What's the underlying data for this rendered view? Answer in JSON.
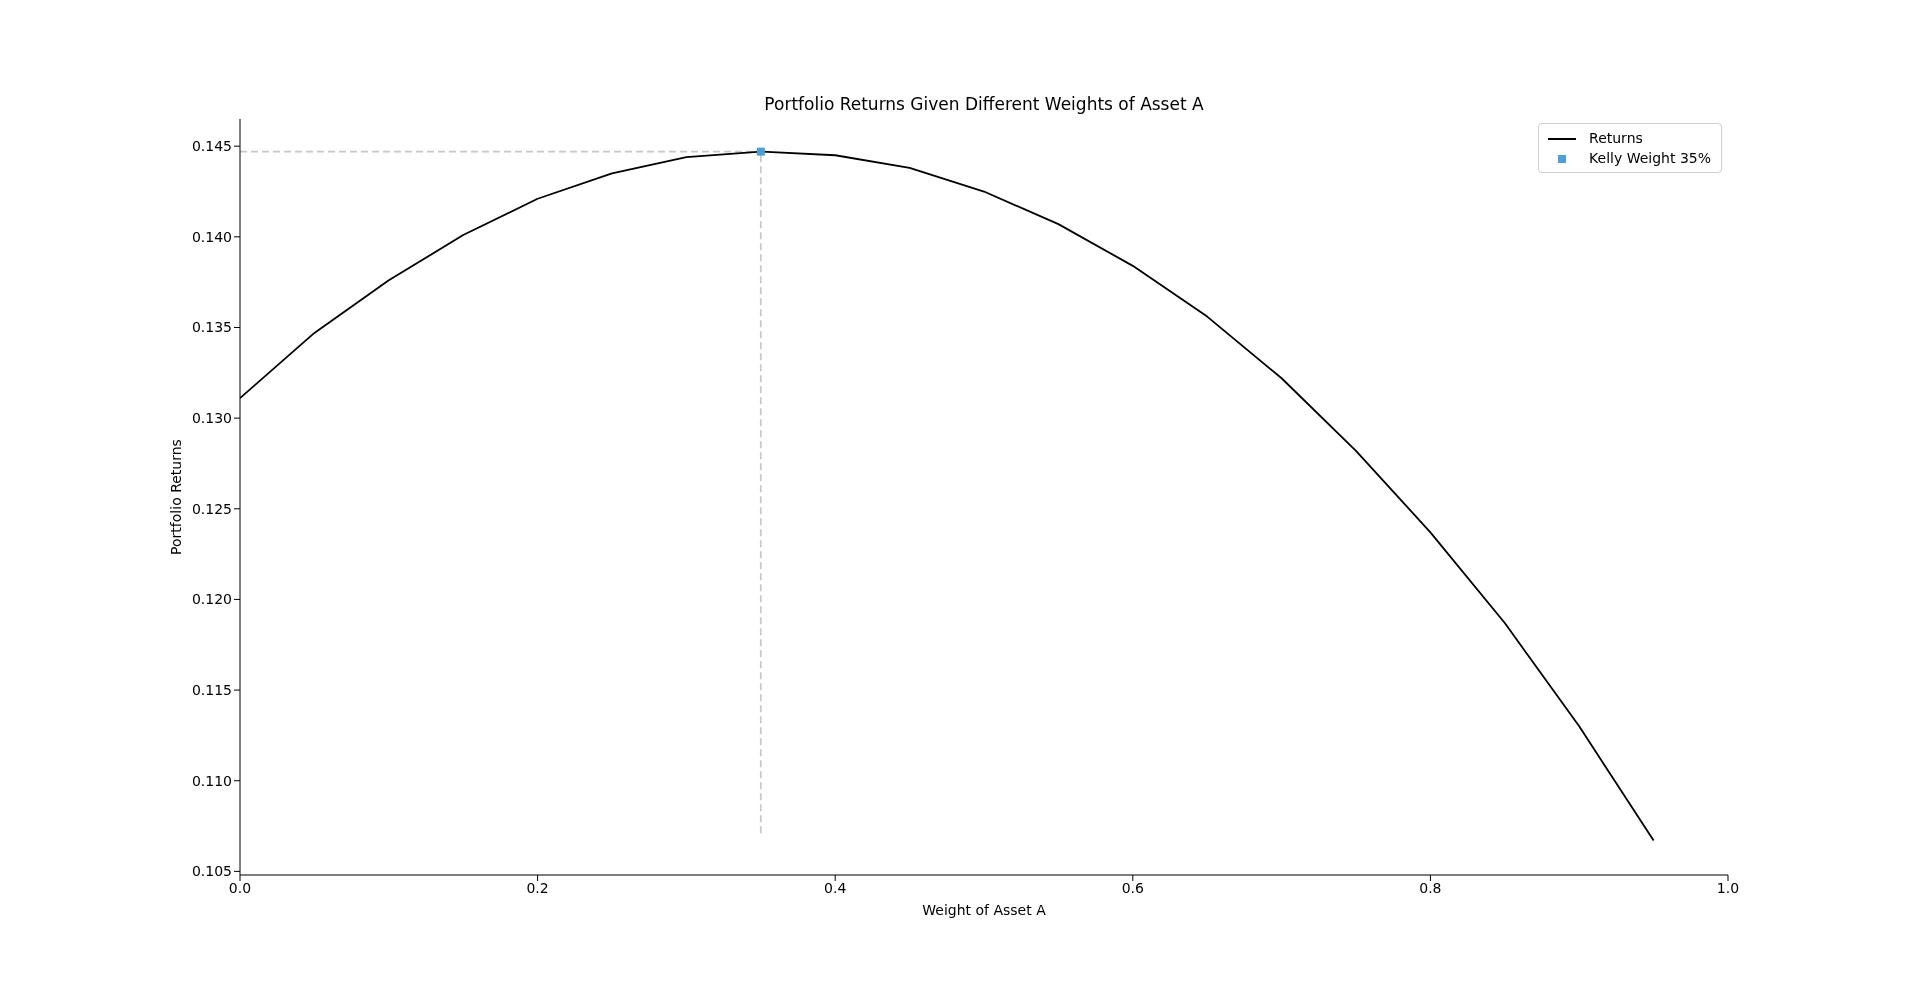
{
  "chart_data": {
    "type": "line",
    "title": "Portfolio Returns Given Different Weights of Asset A",
    "xlabel": "Weight of Asset A",
    "ylabel": "Portfolio Returns",
    "xlim": [
      0,
      1
    ],
    "xticks": [
      {
        "value": 0,
        "label": "0.0"
      },
      0.2,
      0.4,
      0.6,
      0.8,
      {
        "value": 1,
        "label": "1.0"
      }
    ],
    "ylim": [
      0.1048,
      0.1465
    ],
    "yticks": [
      0.105,
      {
        "value": 0.11,
        "label": "0.110"
      },
      0.115,
      {
        "value": 0.12,
        "label": "0.120"
      },
      0.125,
      {
        "value": 0.13,
        "label": "0.130"
      },
      0.135,
      {
        "value": 0.14,
        "label": "0.140"
      },
      0.145
    ],
    "legend": "top right",
    "series": [
      {
        "color": "#c8c8c8",
        "line_style": "dashed",
        "marker": "none",
        "x": [
          0,
          0.35
        ],
        "values": [
          0.1447,
          0.1447
        ]
      },
      {
        "color": "#c8c8c8",
        "line_style": "dashed",
        "marker": "none",
        "x": [
          0.35,
          0.35
        ],
        "values": [
          0.1071,
          0.1447
        ]
      },
      {
        "name": "Returns",
        "color": "#000000",
        "line_style": "solid",
        "marker": "none",
        "x": [
          0,
          0.05,
          0.1,
          0.15,
          0.2,
          0.25,
          0.3,
          0.35,
          0.4,
          0.45,
          0.5,
          0.55,
          0.6,
          0.65,
          0.7,
          0.75,
          0.8,
          0.85,
          0.9,
          0.95
        ],
        "values": [
          0.1311,
          0.1347,
          0.1376,
          0.1401,
          0.1421,
          0.1435,
          0.1444,
          0.1447,
          0.1445,
          0.1438,
          0.1425,
          0.1407,
          0.1384,
          0.1356,
          0.1322,
          0.1282,
          0.1237,
          0.1187,
          0.113,
          0.1067
        ]
      },
      {
        "type": "scatter",
        "name": "Kelly Weight 35%",
        "color": "#4e9ed8",
        "marker": "square",
        "x": [
          0.35
        ],
        "values": [
          0.1447
        ]
      }
    ]
  }
}
